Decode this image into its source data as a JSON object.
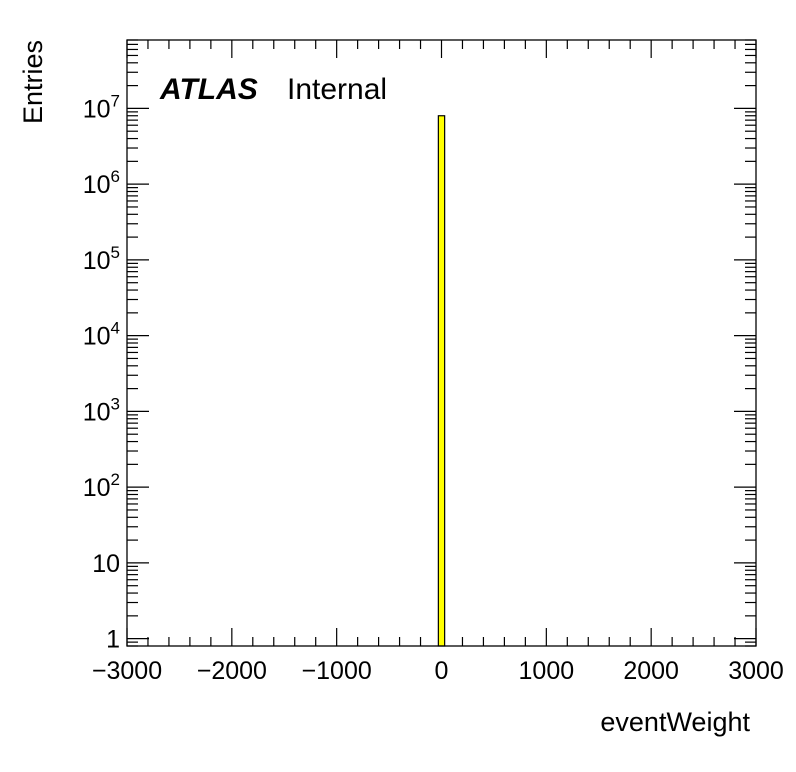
{
  "chart_data": {
    "type": "bar",
    "xlabel": "eventWeight",
    "ylabel": "Entries",
    "label_experiment": "ATLAS",
    "label_status": "Internal",
    "xlim": [
      -3000,
      3000
    ],
    "ylim": [
      0.8,
      80000000
    ],
    "yscale": "log",
    "grid": false,
    "x_ticks": [
      {
        "value": -3000,
        "label": "−3000"
      },
      {
        "value": -2000,
        "label": "−2000"
      },
      {
        "value": -1000,
        "label": "−1000"
      },
      {
        "value": 0,
        "label": "0"
      },
      {
        "value": 1000,
        "label": "1000"
      },
      {
        "value": 2000,
        "label": "2000"
      },
      {
        "value": 3000,
        "label": "3000"
      }
    ],
    "y_ticks": [
      {
        "value": 1,
        "base": "1",
        "exp": ""
      },
      {
        "value": 10,
        "base": "10",
        "exp": ""
      },
      {
        "value": 100,
        "base": "10",
        "exp": "2"
      },
      {
        "value": 1000,
        "base": "10",
        "exp": "3"
      },
      {
        "value": 10000,
        "base": "10",
        "exp": "4"
      },
      {
        "value": 100000,
        "base": "10",
        "exp": "5"
      },
      {
        "value": 1000000,
        "base": "10",
        "exp": "6"
      },
      {
        "value": 10000000,
        "base": "10",
        "exp": "7"
      }
    ],
    "bins": [
      {
        "x_low": -30,
        "x_high": 30,
        "value": 8000000
      }
    ],
    "bar_color": "#ffff00",
    "bar_edge_color": "#000000"
  }
}
